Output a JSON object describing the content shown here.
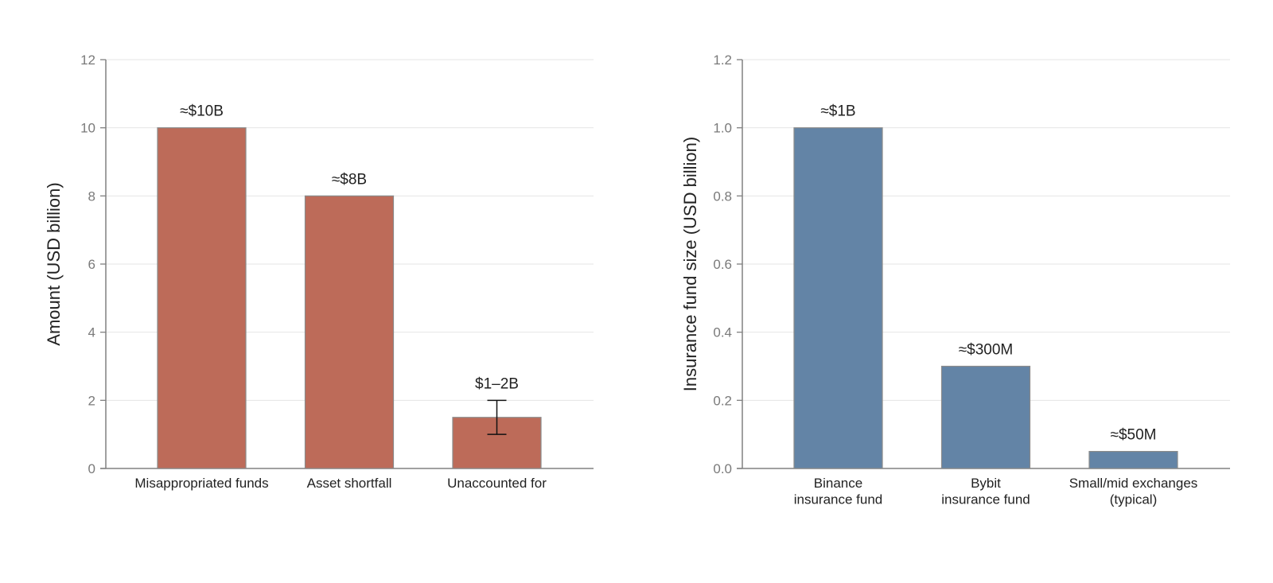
{
  "chart_data": [
    {
      "type": "bar",
      "categories": [
        "Misappropriated funds",
        "Asset shortfall",
        "Unaccounted for"
      ],
      "values": [
        10,
        8,
        1.5
      ],
      "error_bars": [
        null,
        null,
        [
          1,
          2
        ]
      ],
      "data_labels": [
        "≈$10B",
        "≈$8B",
        "$1–2B"
      ],
      "title": "",
      "xlabel": "",
      "ylabel": "Amount (USD billion)",
      "ylim": [
        0,
        12
      ],
      "yticks": [
        "0",
        "2",
        "4",
        "6",
        "8",
        "10",
        "12"
      ],
      "ytick_values": [
        0,
        2,
        4,
        6,
        8,
        10,
        12
      ],
      "grid": true,
      "color": "#bd6b59"
    },
    {
      "type": "bar",
      "categories": [
        "Binance\ninsurance fund",
        "Bybit\ninsurance fund",
        "Small/mid exchanges\n(typical)"
      ],
      "values": [
        1.0,
        0.3,
        0.05
      ],
      "error_bars": [
        null,
        null,
        null
      ],
      "data_labels": [
        "≈$1B",
        "≈$300M",
        "≈$50M"
      ],
      "title": "",
      "xlabel": "",
      "ylabel": "Insurance fund size (USD billion)",
      "ylim": [
        0,
        1.2
      ],
      "yticks": [
        "0.0",
        "0.2",
        "0.4",
        "0.6",
        "0.8",
        "1.0",
        "1.2"
      ],
      "ytick_values": [
        0,
        0.2,
        0.4,
        0.6,
        0.8,
        1.0,
        1.2
      ],
      "grid": true,
      "color": "#6384a6"
    }
  ]
}
